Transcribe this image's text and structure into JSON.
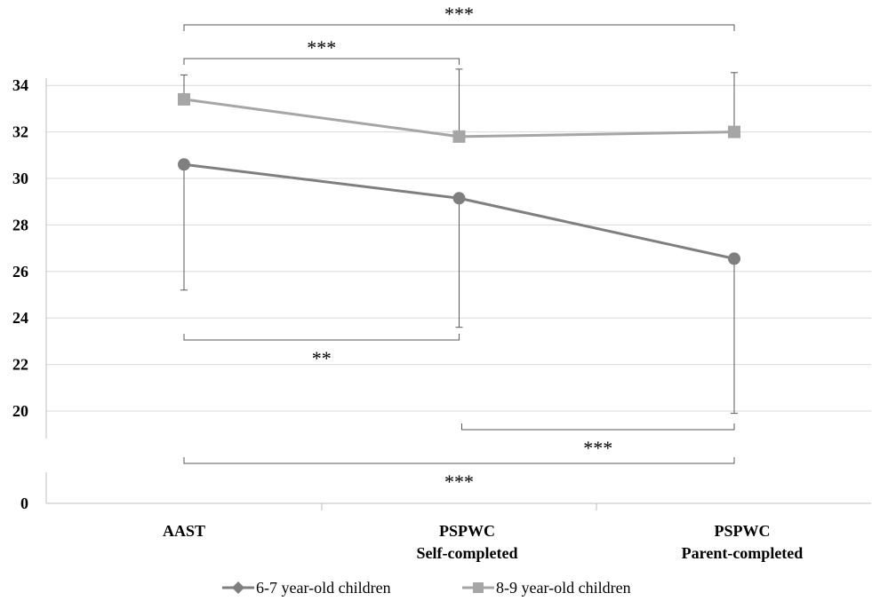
{
  "chart_data": {
    "type": "line",
    "categories": [
      [
        "AAST"
      ],
      [
        "PSPWC",
        "Self-completed"
      ],
      [
        "PSPWC",
        "Parent-completed"
      ]
    ],
    "y_ticks": [
      0,
      20,
      22,
      24,
      26,
      28,
      30,
      32,
      34
    ],
    "ylim": [
      18,
      36
    ],
    "axis_break": true,
    "grid": true,
    "legend_position": "bottom",
    "series": [
      {
        "name": "6-7 year-old children",
        "marker": "diamond",
        "color": "#7f7f7f",
        "values": [
          30.6,
          29.15,
          26.55
        ],
        "error_low": [
          25.2,
          23.6,
          19.9
        ]
      },
      {
        "name": "8-9 year-old children",
        "marker": "square",
        "color": "#a6a6a6",
        "values": [
          33.4,
          31.8,
          32.0
        ],
        "error_high": [
          34.45,
          34.7,
          34.55
        ]
      }
    ],
    "significance": [
      {
        "from": 0,
        "to": 2,
        "label": "***",
        "side": "top",
        "level": 2
      },
      {
        "from": 0,
        "to": 1,
        "label": "***",
        "side": "top",
        "level": 1
      },
      {
        "from": 0,
        "to": 1,
        "label": "**",
        "side": "bottom",
        "level": 1
      },
      {
        "from": 1,
        "to": 2,
        "label": "***",
        "side": "bottom",
        "level": 1
      },
      {
        "from": 0,
        "to": 2,
        "label": "***",
        "side": "bottom",
        "level": 2
      }
    ]
  }
}
